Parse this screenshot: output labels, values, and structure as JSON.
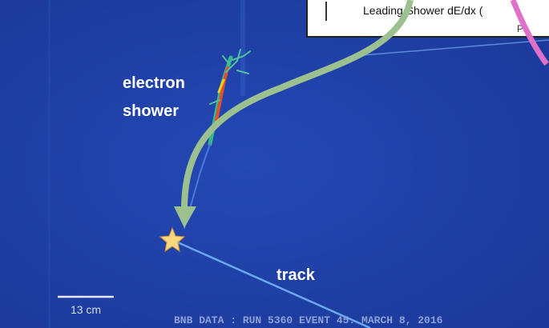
{
  "inset": {
    "caption": "Leading Shower dE/dx (",
    "partial_text": "Ph"
  },
  "labels": {
    "shower": [
      "electron",
      "shower"
    ],
    "track": "track"
  },
  "scale_bar": "13 cm",
  "footer": "BNB DATA : RUN 5360 EVENT 45. MARCH 8, 2016"
}
